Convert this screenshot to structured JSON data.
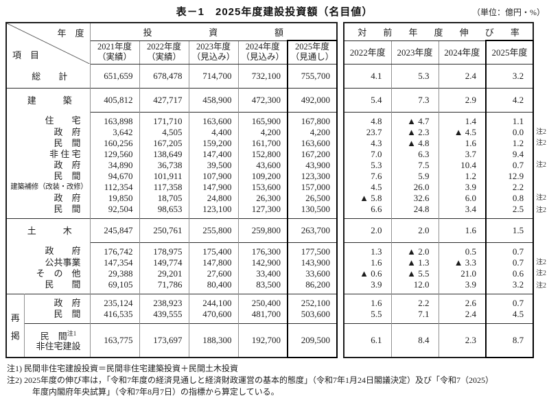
{
  "title": "表－1　2025年度建設投資額（名目値）",
  "unit_note": "（単位：億円・%）",
  "header": {
    "corner_top_label": "年　度",
    "corner_bottom_label": "項　目",
    "invest_group_label": "投資額",
    "growth_group_label": "対前年度伸び率",
    "invest_years": [
      {
        "year": "2021年度",
        "status": "（実績）"
      },
      {
        "year": "2022年度",
        "status": "（実績）"
      },
      {
        "year": "2023年度",
        "status": "（見込み）"
      },
      {
        "year": "2024年度",
        "status": "（見込み）"
      },
      {
        "year": "2025年度",
        "status": "（見通し）"
      }
    ],
    "growth_years": [
      "2022年度",
      "2023年度",
      "2024年度",
      "2025年度"
    ]
  },
  "saikei_label": "再掲",
  "rows": [
    {
      "id": "soukei",
      "kind": "section",
      "rule": "",
      "label": "総　　計",
      "label_align": "center",
      "note": "",
      "invest": [
        "651,659",
        "678,478",
        "714,700",
        "732,100",
        "755,700"
      ],
      "growth": [
        "4.1",
        "5.3",
        "2.4",
        "3.2"
      ]
    },
    {
      "id": "kenchiku",
      "kind": "section",
      "rule": "full",
      "label": "建　　　築",
      "label_align": "center",
      "note": "",
      "invest": [
        "405,812",
        "427,717",
        "458,900",
        "472,300",
        "492,000"
      ],
      "growth": [
        "5.4",
        "7.3",
        "2.9",
        "4.2"
      ]
    },
    {
      "id": "jutaku",
      "kind": "line-first",
      "rule": "nums",
      "label": "住　　宅",
      "label_align": "right",
      "note": "",
      "invest": [
        "163,898",
        "171,710",
        "163,600",
        "165,900",
        "167,800"
      ],
      "growth": [
        "4.8",
        "▲ 4.7",
        "1.4",
        "1.1"
      ]
    },
    {
      "id": "jutaku-seifu",
      "kind": "line",
      "rule": "",
      "label": "政　府",
      "label_align": "right",
      "note": "注2",
      "invest": [
        "3,642",
        "4,505",
        "4,400",
        "4,200",
        "4,200"
      ],
      "growth": [
        "23.7",
        "▲ 2.3",
        "▲ 4.5",
        "0.0"
      ]
    },
    {
      "id": "jutaku-minkan",
      "kind": "line",
      "rule": "",
      "label": "民　間",
      "label_align": "right",
      "note": "注2",
      "invest": [
        "160,256",
        "167,205",
        "159,200",
        "161,700",
        "163,600"
      ],
      "growth": [
        "4.3",
        "▲ 4.8",
        "1.6",
        "1.2"
      ]
    },
    {
      "id": "hijutaku",
      "kind": "line",
      "rule": "",
      "label": "非 住 宅",
      "label_align": "right",
      "note": "",
      "invest": [
        "129,560",
        "138,649",
        "147,400",
        "152,800",
        "167,200"
      ],
      "growth": [
        "7.0",
        "6.3",
        "3.7",
        "9.4"
      ]
    },
    {
      "id": "hijutaku-seifu",
      "kind": "line",
      "rule": "",
      "label": "政　府",
      "label_align": "right",
      "note": "注2",
      "invest": [
        "34,890",
        "36,738",
        "39,500",
        "43,600",
        "43,900"
      ],
      "growth": [
        "5.3",
        "7.5",
        "10.4",
        "0.7"
      ]
    },
    {
      "id": "hijutaku-minkan",
      "kind": "line",
      "rule": "",
      "label": "民　間",
      "label_align": "right",
      "note": "",
      "invest": [
        "94,670",
        "101,911",
        "107,900",
        "109,200",
        "123,300"
      ],
      "growth": [
        "7.6",
        "5.9",
        "1.2",
        "12.9"
      ]
    },
    {
      "id": "hoshu",
      "kind": "line",
      "rule": "",
      "label": "建築補修（改装・改修）",
      "label_align": "small",
      "note": "",
      "invest": [
        "112,354",
        "117,358",
        "147,900",
        "153,600",
        "157,000"
      ],
      "growth": [
        "4.5",
        "26.0",
        "3.9",
        "2.2"
      ]
    },
    {
      "id": "hoshu-seifu",
      "kind": "line",
      "rule": "",
      "label": "政　府",
      "label_align": "right",
      "note": "注2",
      "invest": [
        "19,850",
        "18,705",
        "24,800",
        "26,300",
        "26,500"
      ],
      "growth": [
        "▲ 5.8",
        "32.6",
        "6.0",
        "0.8"
      ]
    },
    {
      "id": "hoshu-minkan",
      "kind": "line-last",
      "rule": "",
      "label": "民　間",
      "label_align": "right",
      "note": "注2",
      "invest": [
        "92,504",
        "98,653",
        "123,100",
        "127,300",
        "130,500"
      ],
      "growth": [
        "6.6",
        "24.8",
        "3.4",
        "2.5"
      ]
    },
    {
      "id": "doboku",
      "kind": "section",
      "rule": "full",
      "label": "土　　　木",
      "label_align": "center",
      "note": "",
      "invest": [
        "245,847",
        "250,761",
        "255,800",
        "259,800",
        "263,700"
      ],
      "growth": [
        "2.0",
        "2.0",
        "1.6",
        "1.5"
      ]
    },
    {
      "id": "doboku-seifu",
      "kind": "line-first",
      "rule": "nums",
      "label": "政　　府",
      "label_align": "right",
      "note": "",
      "invest": [
        "176,742",
        "178,975",
        "175,400",
        "176,300",
        "177,500"
      ],
      "growth": [
        "1.3",
        "▲ 2.0",
        "0.5",
        "0.7"
      ]
    },
    {
      "id": "kokyojigyo",
      "kind": "line",
      "rule": "",
      "label": "公共事業",
      "label_align": "right",
      "note": "注2",
      "invest": [
        "147,354",
        "149,774",
        "147,800",
        "142,900",
        "143,900"
      ],
      "growth": [
        "1.6",
        "▲ 1.3",
        "▲ 3.3",
        "0.7"
      ]
    },
    {
      "id": "sonota",
      "kind": "line",
      "rule": "",
      "label": "そ　の　他",
      "label_align": "right",
      "note": "注2",
      "invest": [
        "29,388",
        "29,201",
        "27,600",
        "33,400",
        "33,600"
      ],
      "growth": [
        "▲ 0.6",
        "▲ 5.5",
        "21.0",
        "0.6"
      ]
    },
    {
      "id": "doboku-minkan",
      "kind": "line-last",
      "rule": "",
      "label": "民　　間",
      "label_align": "right",
      "note": "注2",
      "invest": [
        "69,105",
        "71,786",
        "80,400",
        "83,500",
        "86,200"
      ],
      "growth": [
        "3.9",
        "12.0",
        "3.9",
        "3.2"
      ]
    },
    {
      "id": "saikei-seifu",
      "kind": "line-first",
      "rule": "full",
      "group": "saikei",
      "saikei_start": true,
      "label": "政　府",
      "label_align": "right",
      "note": "",
      "invest": [
        "235,124",
        "238,923",
        "244,100",
        "250,400",
        "252,100"
      ],
      "growth": [
        "1.6",
        "2.2",
        "2.6",
        "0.7"
      ]
    },
    {
      "id": "saikei-minkan",
      "kind": "line-last",
      "rule": "",
      "group": "saikei",
      "label": "民　間",
      "label_align": "right",
      "note": "",
      "invest": [
        "416,535",
        "439,555",
        "470,600",
        "481,700",
        "503,600"
      ],
      "growth": [
        "5.5",
        "7.1",
        "2.4",
        "4.5"
      ]
    },
    {
      "id": "saikei-minkan-hijutaku",
      "kind": "tall",
      "rule": "full",
      "group": "saikei",
      "label_line1": "民　間",
      "label_sup": "注1",
      "label_line2": "非住宅建設",
      "label_align": "two",
      "note": "",
      "invest": [
        "163,775",
        "173,697",
        "188,300",
        "192,700",
        "209,500"
      ],
      "growth": [
        "6.1",
        "8.4",
        "2.3",
        "8.7"
      ]
    }
  ],
  "footnotes": [
    "注1) 民間非住宅建設投資＝民間非住宅建築投資＋民間土木投資",
    "注2) 2025年度の伸び率は，「令和7年度の経済見通しと経済財政運営の基本的態度」（令和7年1月24日閣議決定）及び「令和7（2025）",
    "年度内閣府年央試算」（令和7年8月7日）の指標から算定している。"
  ],
  "colors": {
    "border_outer": "#1a1a1a",
    "border_inner": "#909090",
    "border_emphasis": "#000000",
    "text": "#1c1c1c",
    "background": "#ffffff"
  }
}
